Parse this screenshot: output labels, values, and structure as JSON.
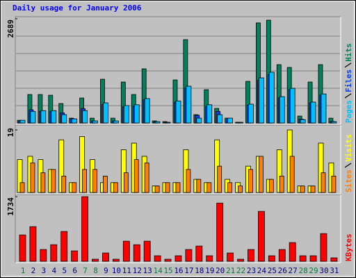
{
  "chart_data": [
    {
      "type": "bar",
      "title": "Daily usage for January 2006",
      "ylim": [
        0,
        2689
      ],
      "yticks": [
        2689
      ],
      "series": [
        {
          "name": "Hits",
          "color": "#00805c",
          "values": [
            70,
            735,
            735,
            716,
            502,
            125,
            645,
            125,
            1129,
            125,
            1057,
            735,
            1398,
            54,
            36,
            1111,
            2151,
            215,
            860,
            376,
            125,
            18,
            1075,
            2582,
            2653,
            1506,
            1434,
            179,
            1057,
            1506,
            125
          ]
        },
        {
          "name": "Files",
          "color": "#0040ff",
          "values": [
            60,
            340,
            300,
            300,
            260,
            110,
            370,
            50,
            480,
            50,
            420,
            440,
            600,
            35,
            20,
            540,
            900,
            200,
            430,
            300,
            120,
            20,
            460,
            1100,
            1250,
            650,
            860,
            100,
            520,
            720,
            40
          ]
        },
        {
          "name": "Pages",
          "color": "#00c0ff",
          "values": [
            70,
            300,
            320,
            320,
            215,
            107,
            320,
            54,
            520,
            54,
            450,
            470,
            630,
            36,
            18,
            570,
            950,
            125,
            470,
            215,
            125,
            18,
            485,
            1165,
            1309,
            680,
            895,
            90,
            540,
            750,
            36
          ]
        }
      ]
    },
    {
      "type": "bar",
      "ylim": [
        0,
        19
      ],
      "yticks": [
        19
      ],
      "series": [
        {
          "name": "Visits",
          "color": "#ffff00",
          "values": [
            10,
            11,
            10,
            7,
            16,
            3,
            17,
            10,
            3,
            3,
            13,
            15,
            11,
            2,
            3,
            3,
            13,
            4,
            3,
            16,
            4,
            3,
            8,
            11,
            4,
            13,
            19,
            2,
            2,
            15,
            9
          ]
        },
        {
          "name": "Sites",
          "color": "#ff8000",
          "values": [
            3,
            9,
            6,
            7,
            5,
            3,
            7,
            7,
            5,
            3,
            6,
            10,
            9,
            2,
            3,
            3,
            7,
            4,
            3,
            8,
            3,
            2,
            7,
            11,
            4,
            5,
            11,
            2,
            2,
            6,
            5
          ]
        }
      ]
    },
    {
      "type": "bar",
      "ylim": [
        0,
        1734
      ],
      "yticks": [
        1734
      ],
      "categories": [
        "1",
        "2",
        "3",
        "4",
        "5",
        "6",
        "7",
        "8",
        "9",
        "10",
        "11",
        "12",
        "13",
        "14",
        "15",
        "16",
        "17",
        "18",
        "19",
        "20",
        "21",
        "22",
        "23",
        "24",
        "25",
        "26",
        "27",
        "28",
        "29",
        "30",
        "31"
      ],
      "category_colors": [
        "#008040",
        "#000080",
        "#000080",
        "#000080",
        "#000080",
        "#000080",
        "#008040",
        "#008040",
        "#000080",
        "#000080",
        "#000080",
        "#000080",
        "#000080",
        "#008040",
        "#008040",
        "#000080",
        "#000080",
        "#000080",
        "#000080",
        "#000080",
        "#008040",
        "#008040",
        "#000080",
        "#000080",
        "#000080",
        "#000080",
        "#000080",
        "#008040",
        "#008040",
        "#000080",
        "#000080"
      ],
      "series": [
        {
          "name": "KBytes",
          "color": "#ff0000",
          "values": [
            707,
            930,
            316,
            446,
            800,
            279,
            1734,
            56,
            223,
            56,
            540,
            446,
            540,
            149,
            56,
            149,
            316,
            409,
            149,
            1562,
            223,
            56,
            316,
            1339,
            149,
            316,
            502,
            149,
            149,
            744,
            93
          ]
        }
      ]
    }
  ]
}
